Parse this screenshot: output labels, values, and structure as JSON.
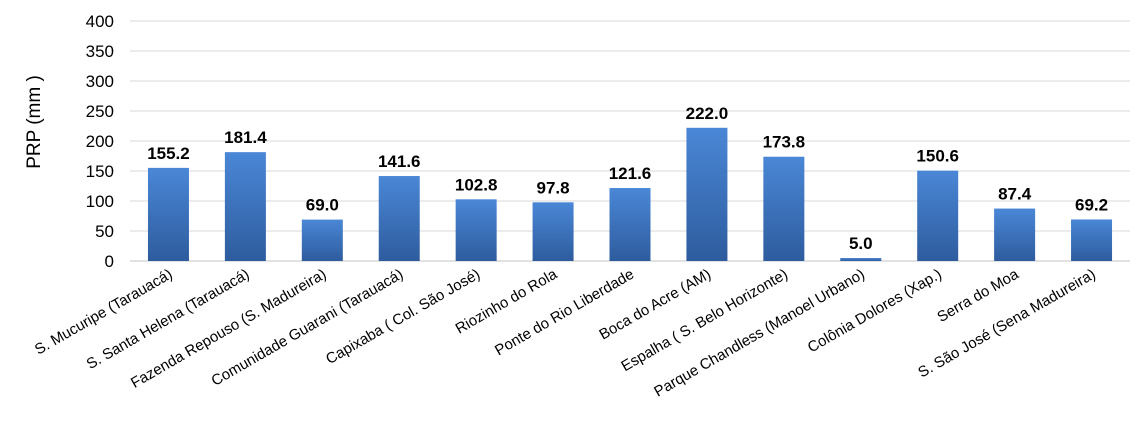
{
  "chart_data": {
    "type": "bar",
    "ylabel": "PRP (mm )",
    "ylim": [
      0,
      400
    ],
    "yticks": [
      0,
      50,
      100,
      150,
      200,
      250,
      300,
      350,
      400
    ],
    "grid": true,
    "colors": {
      "bar_top": "#4a87d6",
      "bar_bottom": "#2e5c9e",
      "grid": "#d9d9d9"
    },
    "categories": [
      "S. Mucuripe (Tarauacá)",
      "S. Santa Helena (Tarauacá)",
      "Fazenda Repouso (S. Madureira)",
      "Comunidade Guarani (Tarauacá)",
      "Capixaba ( Col. São José)",
      "Riozinho do Rola",
      "Ponte do Rio Liberdade",
      "Boca do Acre (AM)",
      "Espalha ( S. Belo Horizonte)",
      "Parque Chandless (Manoel Urbano)",
      "Colônia Dolores (Xap.)",
      "Serra do Moa",
      "S. São José (Sena Madureira)"
    ],
    "values": [
      155.2,
      181.4,
      69.0,
      141.6,
      102.8,
      97.8,
      121.6,
      222.0,
      173.8,
      5.0,
      150.6,
      87.4,
      69.2
    ],
    "value_labels": [
      "155.2",
      "181.4",
      "69.0",
      "141.6",
      "102.8",
      "97.8",
      "121.6",
      "222.0",
      "173.8",
      "5.0",
      "150.6",
      "87.4",
      "69.2"
    ]
  }
}
